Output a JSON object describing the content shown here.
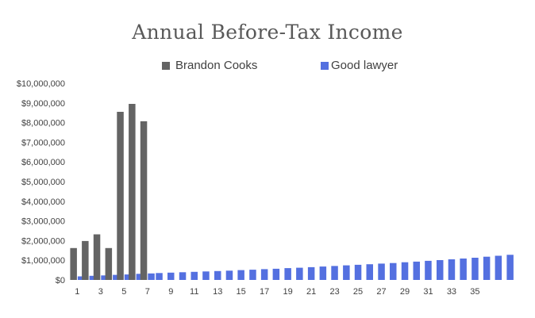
{
  "chart_data": {
    "type": "bar",
    "title": "Annual Before-Tax Income",
    "xlabel": "",
    "ylabel": "",
    "ylim": [
      0,
      10000000
    ],
    "y_ticks": [
      "$0",
      "$1,000,000",
      "$2,000,000",
      "$3,000,000",
      "$4,000,000",
      "$5,000,000",
      "$6,000,000",
      "$7,000,000",
      "$8,000,000",
      "$9,000,000",
      "$10,000,000"
    ],
    "y_tick_values": [
      0,
      1000000,
      2000000,
      3000000,
      4000000,
      5000000,
      6000000,
      7000000,
      8000000,
      9000000,
      10000000
    ],
    "x_tick_labels": [
      "1",
      "3",
      "5",
      "7",
      "9",
      "11",
      "13",
      "15",
      "17",
      "19",
      "21",
      "23",
      "25",
      "27",
      "29",
      "31",
      "33",
      "35"
    ],
    "categories": [
      "1",
      "2",
      "3",
      "4",
      "5",
      "6",
      "7",
      "8",
      "9",
      "10",
      "11",
      "12",
      "13",
      "14",
      "15",
      "16",
      "17",
      "18",
      "19",
      "20",
      "21",
      "22",
      "23",
      "24",
      "25",
      "26",
      "27",
      "28",
      "29",
      "30",
      "31",
      "32",
      "33",
      "34",
      "35",
      "36",
      "37",
      "38"
    ],
    "legend_position": "top",
    "series": [
      {
        "name": "Brandon Cooks",
        "color": "#646464",
        "values": [
          1620000,
          1980000,
          2320000,
          1620000,
          8550000,
          8950000,
          8070000,
          null,
          null,
          null,
          null,
          null,
          null,
          null,
          null,
          null,
          null,
          null,
          null,
          null,
          null,
          null,
          null,
          null,
          null,
          null,
          null,
          null,
          null,
          null,
          null,
          null,
          null,
          null,
          null,
          null,
          null,
          null
        ]
      },
      {
        "name": "Good lawyer",
        "color": "#5470E0",
        "values": [
          180000,
          210000,
          230000,
          260000,
          280000,
          310000,
          330000,
          350000,
          370000,
          390000,
          410000,
          430000,
          450000,
          470000,
          500000,
          520000,
          550000,
          570000,
          600000,
          620000,
          650000,
          680000,
          710000,
          740000,
          770000,
          800000,
          830000,
          860000,
          900000,
          930000,
          970000,
          1010000,
          1050000,
          1090000,
          1130000,
          1180000,
          1230000,
          1280000
        ]
      }
    ]
  }
}
